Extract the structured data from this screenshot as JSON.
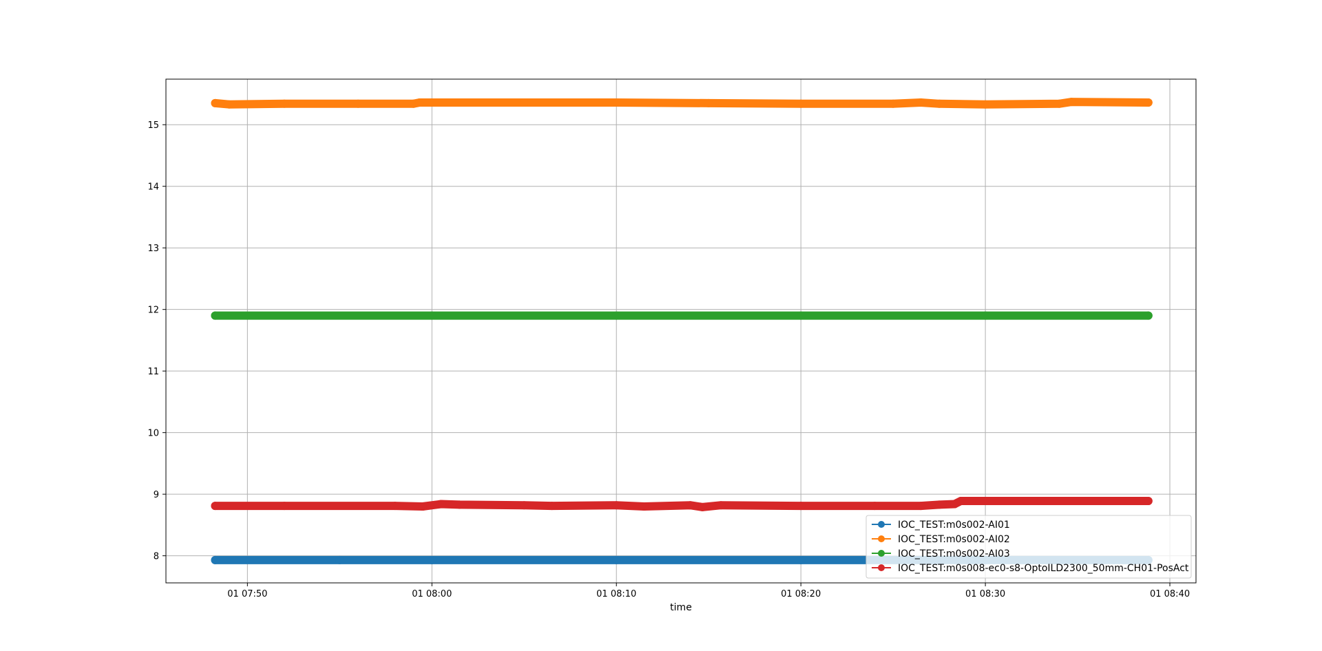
{
  "chart_data": {
    "type": "line",
    "title": "",
    "xlabel": "time",
    "ylabel": "",
    "x_ticks": [
      {
        "value": "2000-01-01T07:50:00",
        "label": "01 07:50"
      },
      {
        "value": "2000-01-01T08:00:00",
        "label": "01 08:00"
      },
      {
        "value": "2000-01-01T08:10:00",
        "label": "01 08:10"
      },
      {
        "value": "2000-01-01T08:20:00",
        "label": "01 08:20"
      },
      {
        "value": "2000-01-01T08:30:00",
        "label": "01 08:30"
      },
      {
        "value": "2000-01-01T08:40:00",
        "label": "01 08:40"
      }
    ],
    "xlim": [
      "2000-01-01T07:45:35",
      "2000-01-01T08:41:25"
    ],
    "y_ticks": [
      8,
      9,
      10,
      11,
      12,
      13,
      14,
      15
    ],
    "ylim": [
      7.56,
      15.74
    ],
    "grid": true,
    "legend_position": "lower-right",
    "series": [
      {
        "name": "IOC_TEST:m0s002-AI01",
        "color": "#1f77b4",
        "marker": "circle",
        "x": [
          "2000-01-01T07:48:15",
          "2000-01-01T07:55:00",
          "2000-01-01T08:00:00",
          "2000-01-01T08:10:00",
          "2000-01-01T08:20:00",
          "2000-01-01T08:30:00",
          "2000-01-01T08:38:50"
        ],
        "y": [
          7.93,
          7.93,
          7.93,
          7.93,
          7.93,
          7.93,
          7.93
        ]
      },
      {
        "name": "IOC_TEST:m0s002-AI02",
        "color": "#ff7f0e",
        "marker": "circle",
        "x": [
          "2000-01-01T07:48:15",
          "2000-01-01T07:49:00",
          "2000-01-01T07:52:00",
          "2000-01-01T07:56:00",
          "2000-01-01T07:59:00",
          "2000-01-01T07:59:20",
          "2000-01-01T08:05:00",
          "2000-01-01T08:10:00",
          "2000-01-01T08:15:00",
          "2000-01-01T08:20:00",
          "2000-01-01T08:25:00",
          "2000-01-01T08:26:30",
          "2000-01-01T08:27:30",
          "2000-01-01T08:30:00",
          "2000-01-01T08:34:00",
          "2000-01-01T08:34:40",
          "2000-01-01T08:38:50"
        ],
        "y": [
          15.35,
          15.33,
          15.34,
          15.34,
          15.34,
          15.36,
          15.36,
          15.36,
          15.35,
          15.34,
          15.34,
          15.36,
          15.34,
          15.33,
          15.34,
          15.37,
          15.36
        ]
      },
      {
        "name": "IOC_TEST:m0s002-AI03",
        "color": "#2ca02c",
        "marker": "circle",
        "x": [
          "2000-01-01T07:48:15",
          "2000-01-01T08:00:00",
          "2000-01-01T08:10:00",
          "2000-01-01T08:20:00",
          "2000-01-01T08:30:00",
          "2000-01-01T08:38:50"
        ],
        "y": [
          11.9,
          11.9,
          11.9,
          11.9,
          11.9,
          11.9
        ]
      },
      {
        "name": "IOC_TEST:m0s008-ec0-s8-OptoILD2300_50mm-CH01-PosAct",
        "color": "#d62728",
        "marker": "circle",
        "x": [
          "2000-01-01T07:48:15",
          "2000-01-01T07:52:00",
          "2000-01-01T07:58:00",
          "2000-01-01T07:59:30",
          "2000-01-01T08:00:30",
          "2000-01-01T08:01:30",
          "2000-01-01T08:05:00",
          "2000-01-01T08:06:30",
          "2000-01-01T08:10:00",
          "2000-01-01T08:11:30",
          "2000-01-01T08:14:00",
          "2000-01-01T08:14:40",
          "2000-01-01T08:15:40",
          "2000-01-01T08:20:00",
          "2000-01-01T08:24:00",
          "2000-01-01T08:26:30",
          "2000-01-01T08:27:30",
          "2000-01-01T08:28:20",
          "2000-01-01T08:28:40",
          "2000-01-01T08:33:00",
          "2000-01-01T08:38:50"
        ],
        "y": [
          8.81,
          8.81,
          8.81,
          8.8,
          8.84,
          8.83,
          8.82,
          8.81,
          8.82,
          8.8,
          8.82,
          8.79,
          8.82,
          8.81,
          8.81,
          8.81,
          8.83,
          8.84,
          8.89,
          8.89,
          8.89
        ]
      }
    ]
  }
}
